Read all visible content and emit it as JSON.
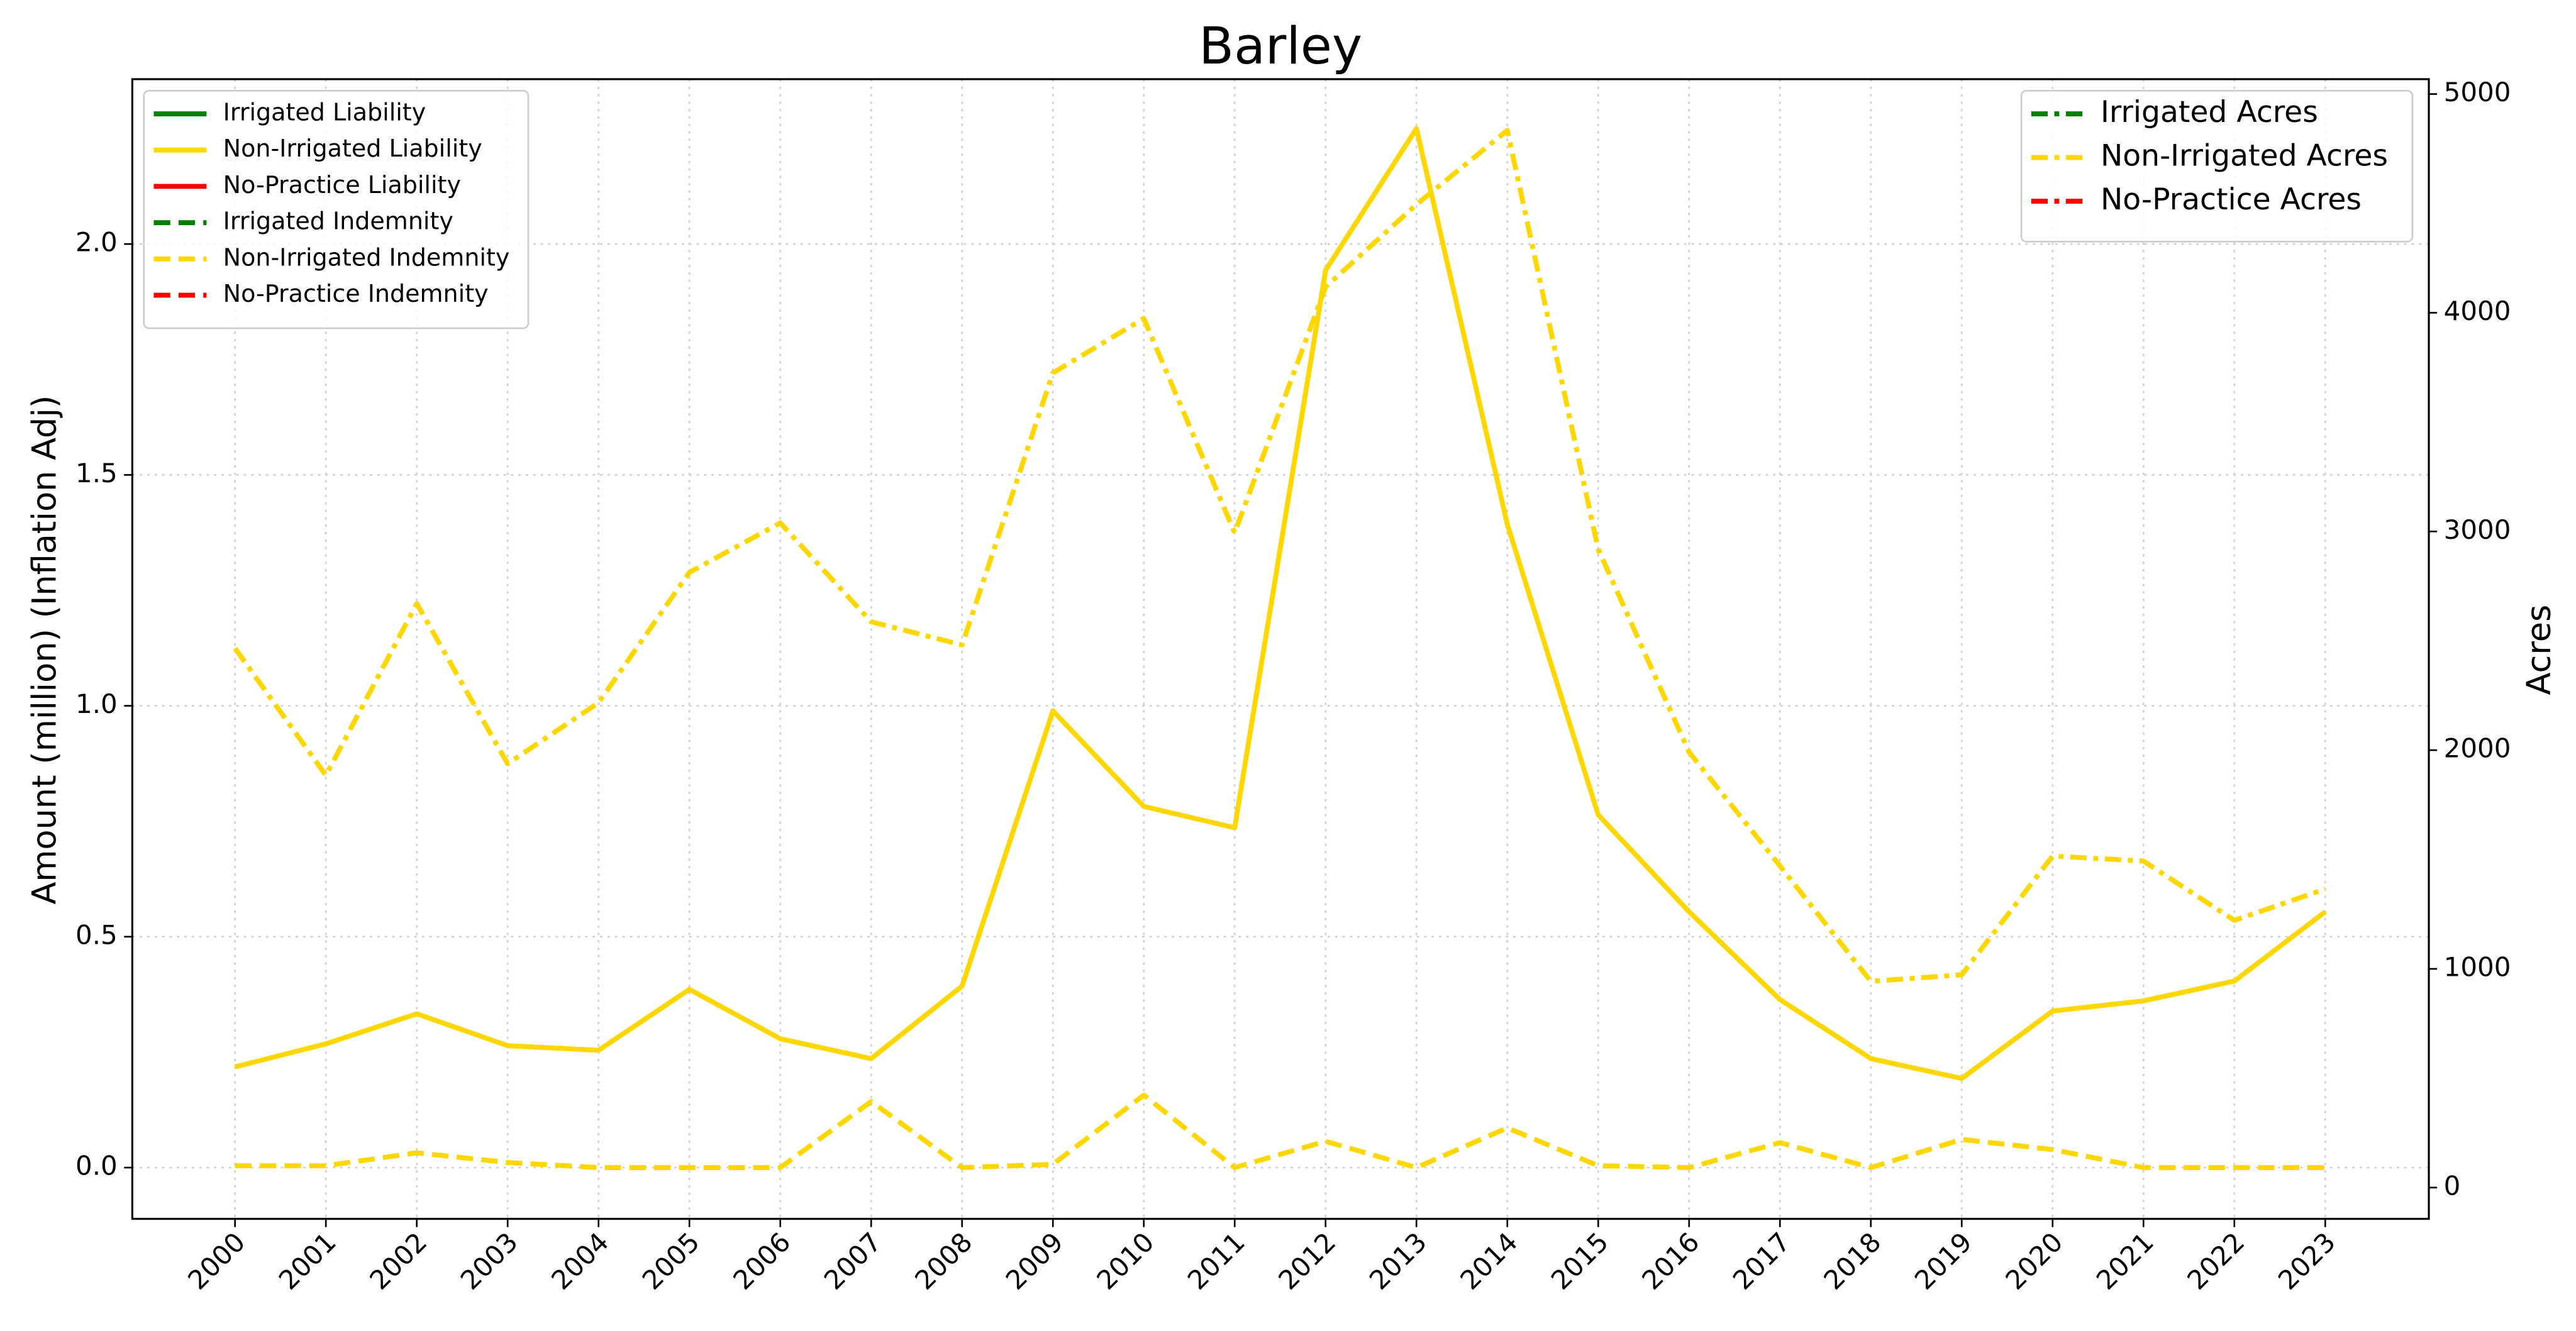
{
  "chart_data": {
    "type": "line",
    "title": "Barley",
    "ylabel": "Amount (million) (Inflation Adj)",
    "y2label": "Acres",
    "x": [
      2000,
      2001,
      2002,
      2003,
      2004,
      2005,
      2006,
      2007,
      2008,
      2009,
      2010,
      2011,
      2012,
      2013,
      2014,
      2015,
      2016,
      2017,
      2018,
      2019,
      2020,
      2021,
      2022,
      2023
    ],
    "xlim": [
      1998.87,
      2024.14
    ],
    "xticks": [
      2000,
      2001,
      2002,
      2003,
      2004,
      2005,
      2006,
      2007,
      2008,
      2009,
      2010,
      2011,
      2012,
      2013,
      2014,
      2015,
      2016,
      2017,
      2018,
      2019,
      2020,
      2021,
      2022,
      2023
    ],
    "ylim": [
      -0.111,
      2.357
    ],
    "yticks": [
      {
        "value": 0,
        "label": "0.0"
      },
      0.5,
      {
        "value": 1,
        "label": "1.0"
      },
      1.5,
      {
        "value": 2,
        "label": "2.0"
      }
    ],
    "y2lim": [
      -143,
      5068
    ],
    "y2ticks": [
      0,
      1000,
      2000,
      3000,
      4000,
      5000
    ],
    "grid": true,
    "legend": "upper left",
    "legend2": "upper right",
    "series": [
      {
        "name": "Irrigated Liability",
        "color": "#008000",
        "linestyle": "solid",
        "values": [
          null,
          null,
          null,
          null,
          null,
          null,
          null,
          null,
          null,
          null,
          null,
          null,
          null,
          null,
          null,
          null,
          null,
          null,
          null,
          null,
          null,
          null,
          null,
          null
        ]
      },
      {
        "name": "Non-Irrigated Liability",
        "color": "#ffd700",
        "linestyle": "solid",
        "values": [
          0.218,
          0.268,
          0.333,
          0.264,
          0.254,
          0.386,
          0.279,
          0.236,
          0.393,
          0.989,
          0.782,
          0.736,
          1.943,
          2.25,
          1.393,
          0.764,
          0.554,
          0.364,
          0.236,
          0.193,
          0.339,
          0.361,
          0.404,
          0.554
        ]
      },
      {
        "name": "No-Practice Liability",
        "color": "#ff0000",
        "linestyle": "solid",
        "values": [
          null,
          null,
          null,
          null,
          null,
          null,
          null,
          null,
          null,
          null,
          null,
          null,
          null,
          null,
          null,
          null,
          null,
          null,
          null,
          null,
          null,
          null,
          null,
          null
        ]
      },
      {
        "name": "Irrigated Indemnity",
        "color": "#008000",
        "linestyle": "dashed",
        "values": [
          null,
          null,
          null,
          null,
          null,
          null,
          null,
          null,
          null,
          null,
          null,
          null,
          null,
          null,
          null,
          null,
          null,
          null,
          null,
          null,
          null,
          null,
          null,
          null
        ]
      },
      {
        "name": "Non-Irrigated Indemnity",
        "color": "#ffd700",
        "linestyle": "dashed",
        "values": [
          0.004,
          0.004,
          0.032,
          0.011,
          0,
          0,
          0,
          0.143,
          0,
          0.007,
          0.157,
          0,
          0.057,
          0,
          0.086,
          0.004,
          0,
          0.054,
          0,
          0.061,
          0.039,
          0,
          0,
          0
        ]
      },
      {
        "name": "No-Practice Indemnity",
        "color": "#ff0000",
        "linestyle": "dashed",
        "values": [
          null,
          null,
          null,
          null,
          null,
          null,
          null,
          null,
          null,
          null,
          null,
          null,
          null,
          null,
          null,
          null,
          null,
          null,
          null,
          null,
          null,
          null,
          null,
          null
        ]
      },
      {
        "name": "Irrigated Acres",
        "color": "#008000",
        "linestyle": "dashdot",
        "axis": "y2",
        "values": [
          null,
          null,
          null,
          null,
          null,
          null,
          null,
          null,
          null,
          null,
          null,
          null,
          null,
          null,
          null,
          null,
          null,
          null,
          null,
          null,
          null,
          null,
          null,
          null
        ]
      },
      {
        "name": "Non-Irrigated Acres",
        "color": "#ffd700",
        "linestyle": "dashdot",
        "axis": "y2",
        "values": [
          2466,
          1885,
          2670,
          1938,
          2217,
          2813,
          3039,
          2587,
          2481,
          3725,
          3974,
          2994,
          4118,
          4495,
          4834,
          2919,
          1991,
          1471,
          943,
          973,
          1516,
          1493,
          1222,
          1365
        ]
      },
      {
        "name": "No-Practice Acres",
        "color": "#ff0000",
        "linestyle": "dashdot",
        "axis": "y2",
        "values": [
          null,
          null,
          null,
          null,
          null,
          null,
          null,
          null,
          null,
          null,
          null,
          null,
          null,
          null,
          null,
          null,
          null,
          null,
          null,
          null,
          null,
          null,
          null,
          null
        ]
      }
    ]
  }
}
